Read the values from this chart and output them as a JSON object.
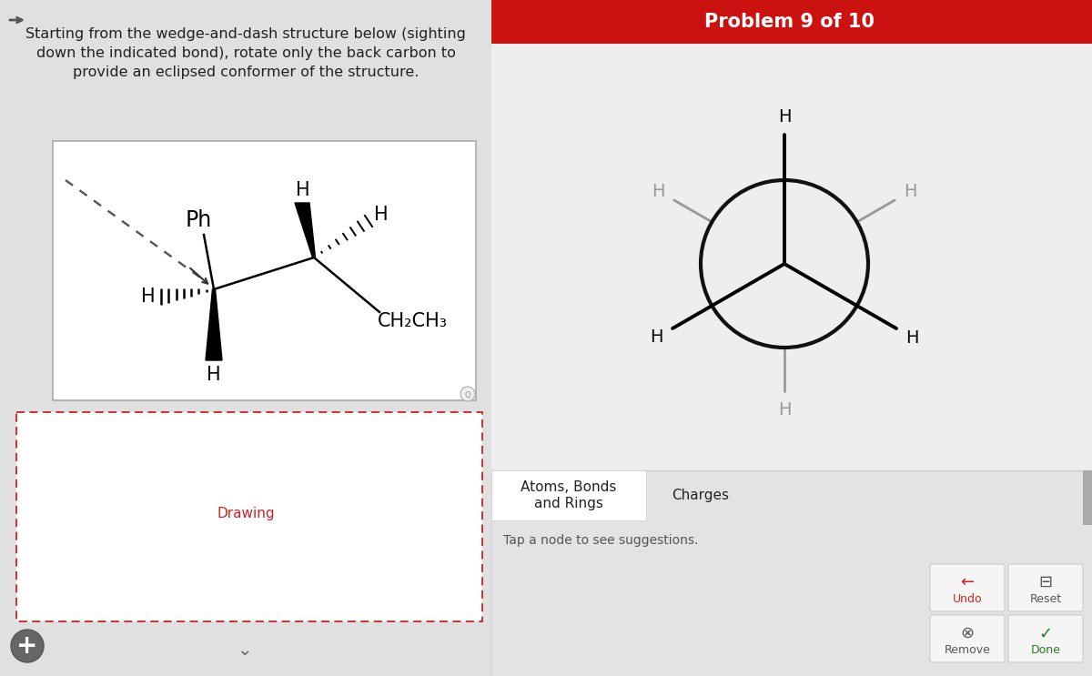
{
  "bg_color": "#eeeeee",
  "header_color": "#cc1111",
  "header_text": "Problem 9 of 10",
  "header_text_color": "#ffffff",
  "header_fontsize": 15,
  "instruction_text": "Starting from the wedge-and-dash structure below (sighting\ndown the indicated bond), rotate only the back carbon to\nprovide an eclipsed conformer of the structure.",
  "instruction_fontsize": 11.5,
  "instruction_color": "#222222",
  "left_panel_bg": "#e0e0e0",
  "molecule_box_border": "#aaaaaa",
  "drawing_box_border_color": "#cc2222",
  "drawing_label": "Drawing",
  "drawing_label_color": "#cc2222",
  "drawing_label_fontsize": 11,
  "newman_circle_color": "#111111",
  "newman_front_line_color": "#111111",
  "newman_back_line_color": "#999999",
  "atoms_bonds_tab": "Atoms, Bonds\nand Rings",
  "charges_tab": "Charges",
  "tap_text": "Tap a node to see suggestions.",
  "tab_fontsize": 11,
  "tap_fontsize": 10,
  "tab_color": "#222222",
  "undo_label": "Undo",
  "reset_label": "Reset",
  "remove_label": "Remove",
  "done_label": "Done",
  "undo_color": "#cc2222",
  "done_color": "#2a7a2a",
  "button_fontsize": 10
}
